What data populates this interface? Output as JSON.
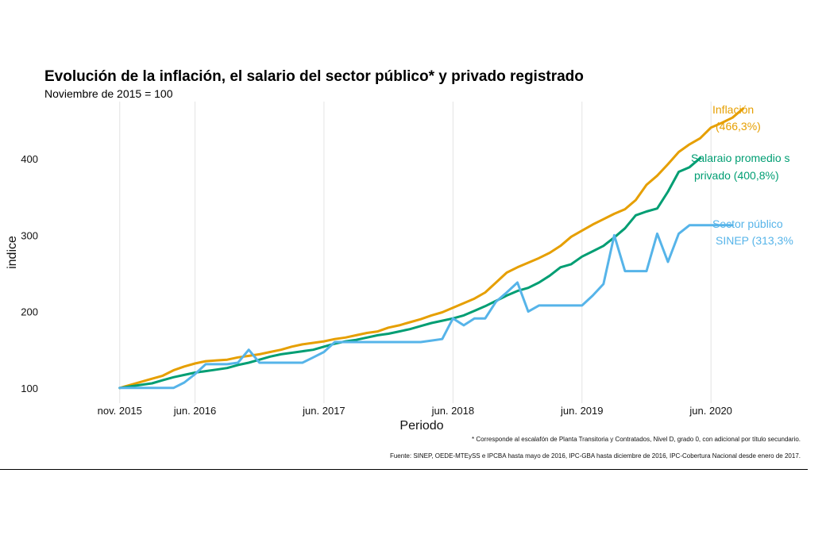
{
  "title": "Evolución de la inflación, el salario del sector público* y privado registrado",
  "subtitle": "Noviembre de 2015 = 100",
  "footnote": "* Corresponde al escalafón de Planta Transitoria y Contratados, Nivel D, grado 0, con adicional por título secundario.",
  "source": "Fuente: SINEP, OEDE-MTEySS e IPCBA hasta mayo de 2016, IPC-GBA hasta diciembre de 2016, IPC-Cobertura Nacional desde enero de 2017.",
  "chart_data": {
    "type": "line",
    "title": "Evolución de la inflación, el salario del sector público* y privado registrado",
    "subtitle": "Noviembre de 2015 = 100",
    "xlabel": "Periodo",
    "ylabel": "indice",
    "x_start": "nov. 2015",
    "x_unit": "months since nov. 2015",
    "xlim": [
      -7,
      64
    ],
    "ylim": [
      80,
      475
    ],
    "x_ticks": [
      {
        "value": 0,
        "label": "nov. 2015"
      },
      {
        "value": 7,
        "label": "jun. 2016"
      },
      {
        "value": 19,
        "label": "jun. 2017"
      },
      {
        "value": 31,
        "label": "jun. 2018"
      },
      {
        "value": 43,
        "label": "jun. 2019"
      },
      {
        "value": 55,
        "label": "jun. 2020"
      }
    ],
    "y_ticks": [
      100,
      200,
      300,
      400
    ],
    "grid": "vertical",
    "series": [
      {
        "name": "Inflación",
        "label_lines": [
          "Inflación",
          "(466,3%)"
        ],
        "color": "#E69F00",
        "values": [
          100,
          104,
          108,
          112,
          116,
          123,
          128,
          132,
          135,
          136,
          137,
          140,
          142,
          144,
          147,
          150,
          154,
          157,
          159,
          161,
          164,
          166,
          169,
          172,
          174,
          179,
          182,
          186,
          190,
          195,
          199,
          205,
          211,
          217,
          225,
          238,
          251,
          258,
          264,
          270,
          277,
          286,
          298,
          306,
          314,
          321,
          328,
          334,
          346,
          366,
          378,
          393,
          409,
          419,
          427,
          441,
          447,
          454,
          466
        ]
      },
      {
        "name": "Salaraio promedio s privado",
        "label_lines": [
          "Salaraio promedio s",
          "privado (400,8%)"
        ],
        "color": "#009E73",
        "values": [
          100,
          102,
          104,
          106,
          110,
          114,
          117,
          120,
          122,
          124,
          126,
          130,
          133,
          137,
          141,
          144,
          146,
          148,
          150,
          154,
          158,
          161,
          163,
          166,
          169,
          171,
          174,
          177,
          181,
          185,
          188,
          191,
          195,
          201,
          207,
          214,
          221,
          227,
          231,
          238,
          247,
          258,
          262,
          272,
          279,
          286,
          297,
          309,
          326,
          331,
          335,
          357,
          383,
          389,
          401
        ]
      },
      {
        "name": "Sector público SINEP",
        "label_lines": [
          "Sector público",
          "SINEP (313,3%"
        ],
        "color": "#56B4E9",
        "values": [
          100,
          100,
          100,
          100,
          100,
          100,
          107,
          118,
          131,
          131,
          131,
          133,
          150,
          133,
          133,
          133,
          133,
          133,
          140,
          147,
          160,
          160,
          160,
          160,
          160,
          160,
          160,
          160,
          160,
          162,
          164,
          191,
          182,
          191,
          191,
          213,
          225,
          238,
          200,
          208,
          208,
          208,
          208,
          208,
          221,
          236,
          300,
          253,
          253,
          253,
          302,
          265,
          302,
          313,
          313,
          313,
          313,
          313
        ]
      }
    ]
  }
}
